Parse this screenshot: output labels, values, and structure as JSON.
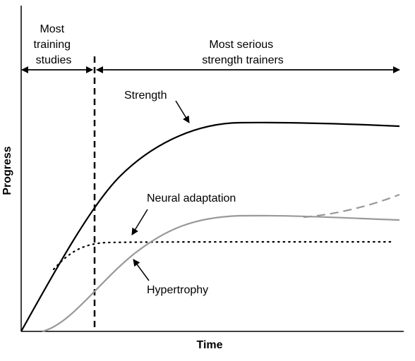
{
  "axes": {
    "y_label": "Progress",
    "x_label": "Time"
  },
  "periods": {
    "left_label_lines": [
      "Most",
      "training",
      "studies"
    ],
    "right_label_lines": [
      "Most serious",
      "strength trainers"
    ]
  },
  "curves": {
    "strength": "Strength",
    "neural": "Neural adaptation",
    "hypertrophy": "Hypertrophy"
  },
  "colors": {
    "strength": "#000000",
    "hypertrophy": "#999999",
    "neural": "#000000",
    "divider": "#000000"
  }
}
